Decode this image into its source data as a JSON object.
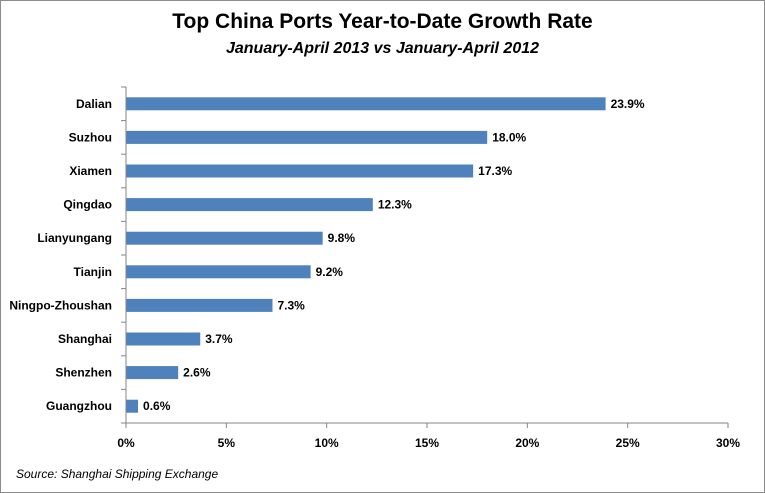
{
  "chart_data": {
    "type": "bar",
    "orientation": "horizontal",
    "title": "Top China Ports Year-to-Date Growth Rate",
    "subtitle": "January-April 2013 vs January-April 2012",
    "categories": [
      "Dalian",
      "Suzhou",
      "Xiamen",
      "Qingdao",
      "Lianyungang",
      "Tianjin",
      "Ningpo-Zhoushan",
      "Shanghai",
      "Shenzhen",
      "Guangzhou"
    ],
    "values": [
      23.9,
      18.0,
      17.3,
      12.3,
      9.8,
      9.2,
      7.3,
      3.7,
      2.6,
      0.6
    ],
    "data_labels": [
      "23.9%",
      "18.0%",
      "17.3%",
      "12.3%",
      "9.8%",
      "9.2%",
      "7.3%",
      "3.7%",
      "2.6%",
      "0.6%"
    ],
    "x_ticks": [
      0,
      5,
      10,
      15,
      20,
      25,
      30
    ],
    "x_tick_labels": [
      "0%",
      "5%",
      "10%",
      "15%",
      "20%",
      "25%",
      "30%"
    ],
    "xlim": [
      0,
      30
    ],
    "grid": false,
    "legend": "none",
    "bar_color": "#4f81bd",
    "source": "Source: Shanghai Shipping Exchange"
  }
}
